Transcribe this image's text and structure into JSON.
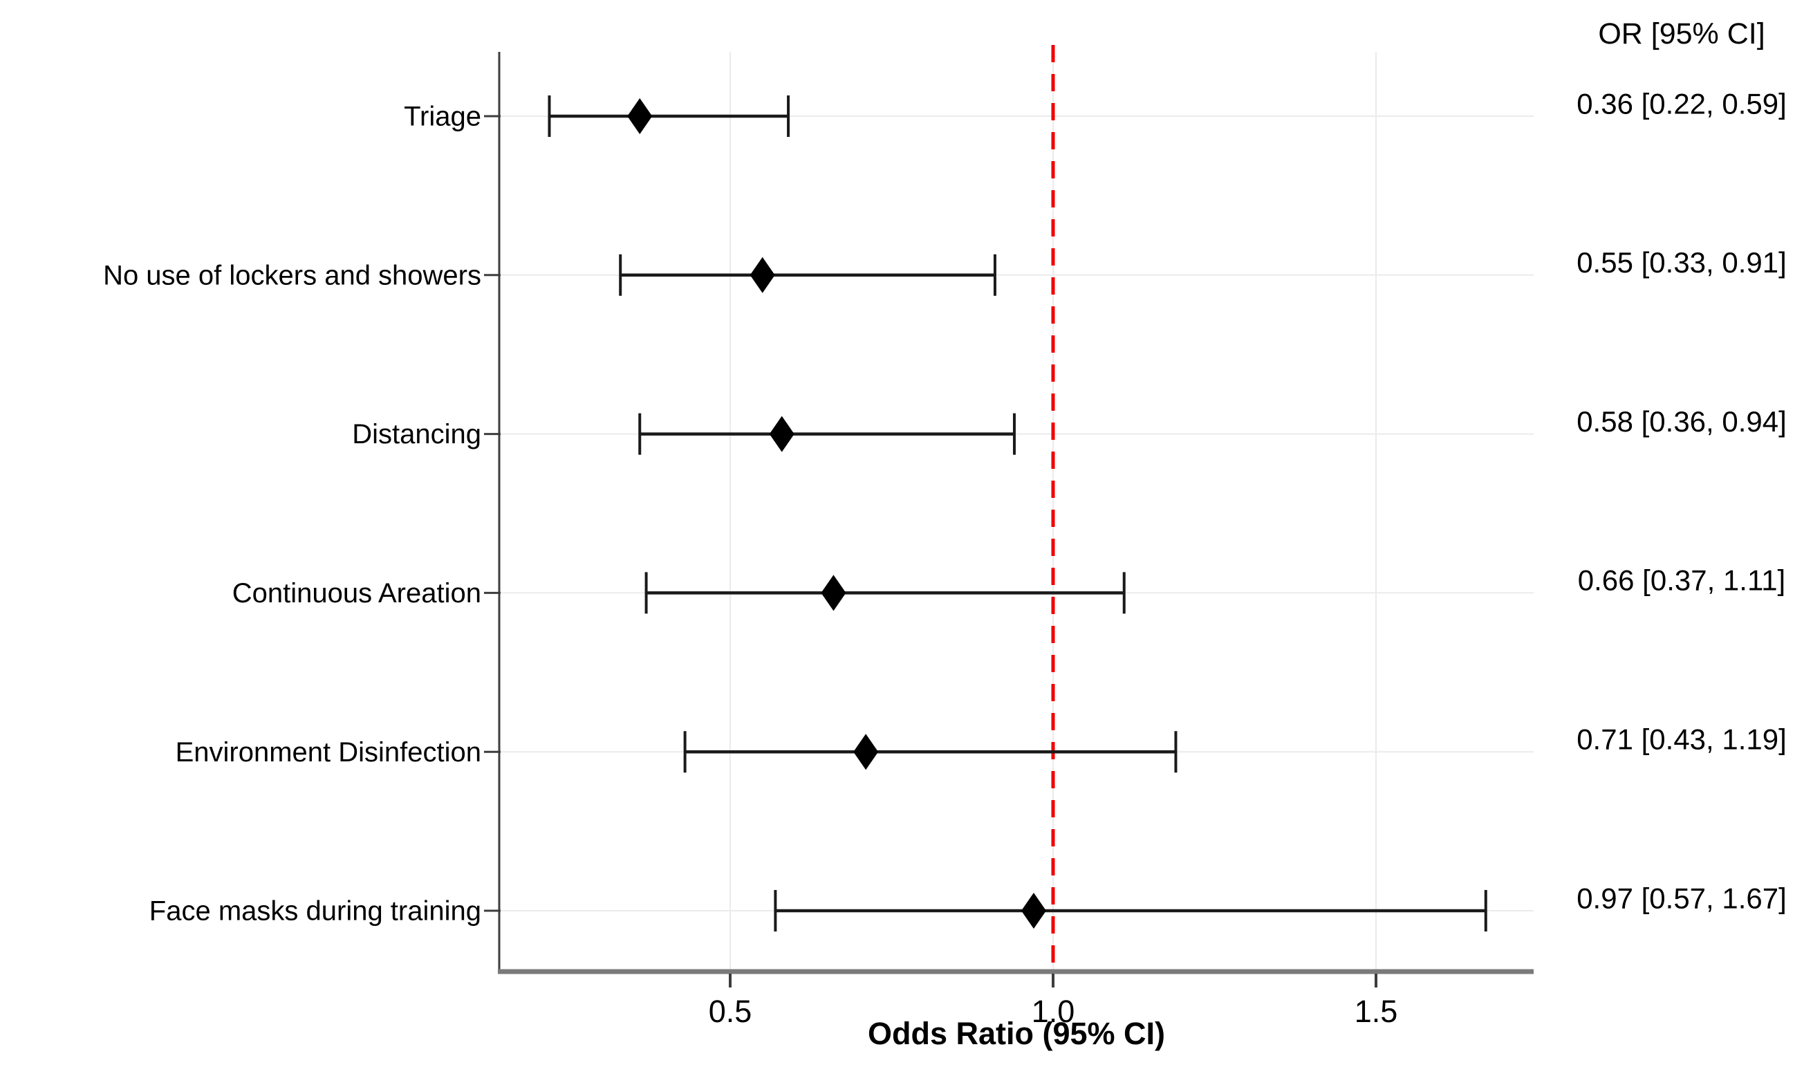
{
  "chart_data": {
    "type": "forest",
    "title": "",
    "xlabel": "Odds Ratio (95% CI)",
    "or_column_header": "OR [95% CI]",
    "x_ticks": [
      {
        "value": 0.5,
        "label": "0.5"
      },
      {
        "value": 1.0,
        "label": "1.0"
      },
      {
        "value": 1.5,
        "label": "1.5"
      }
    ],
    "x_range": [
      0.14,
      1.71
    ],
    "reference_line_value": 1.0,
    "grid": true,
    "rows": [
      {
        "label": "Triage",
        "or": 0.36,
        "ci_low": 0.22,
        "ci_high": 0.59,
        "value_label": "0.36 [0.22, 0.59]"
      },
      {
        "label": "No use of lockers and showers",
        "or": 0.55,
        "ci_low": 0.33,
        "ci_high": 0.91,
        "value_label": "0.55 [0.33, 0.91]"
      },
      {
        "label": "Distancing",
        "or": 0.58,
        "ci_low": 0.36,
        "ci_high": 0.94,
        "value_label": "0.58 [0.36, 0.94]"
      },
      {
        "label": "Continuous Areation",
        "or": 0.66,
        "ci_low": 0.37,
        "ci_high": 1.11,
        "value_label": "0.66 [0.37, 1.11]"
      },
      {
        "label": "Environment Disinfection",
        "or": 0.71,
        "ci_low": 0.43,
        "ci_high": 1.19,
        "value_label": "0.71 [0.43, 1.19]"
      },
      {
        "label": "Face masks during training",
        "or": 0.97,
        "ci_low": 0.57,
        "ci_high": 1.67,
        "value_label": "0.97 [0.57, 1.67]"
      }
    ],
    "colors": {
      "marker": "#000000",
      "ci_line": "#1a1a1a",
      "reference_line": "#f10000",
      "axis_bottom": "#7a7a7a",
      "axis_left": "#3d3d3d",
      "gridline": "#ebebeb",
      "text": "#000000",
      "background": "#ffffff"
    }
  }
}
